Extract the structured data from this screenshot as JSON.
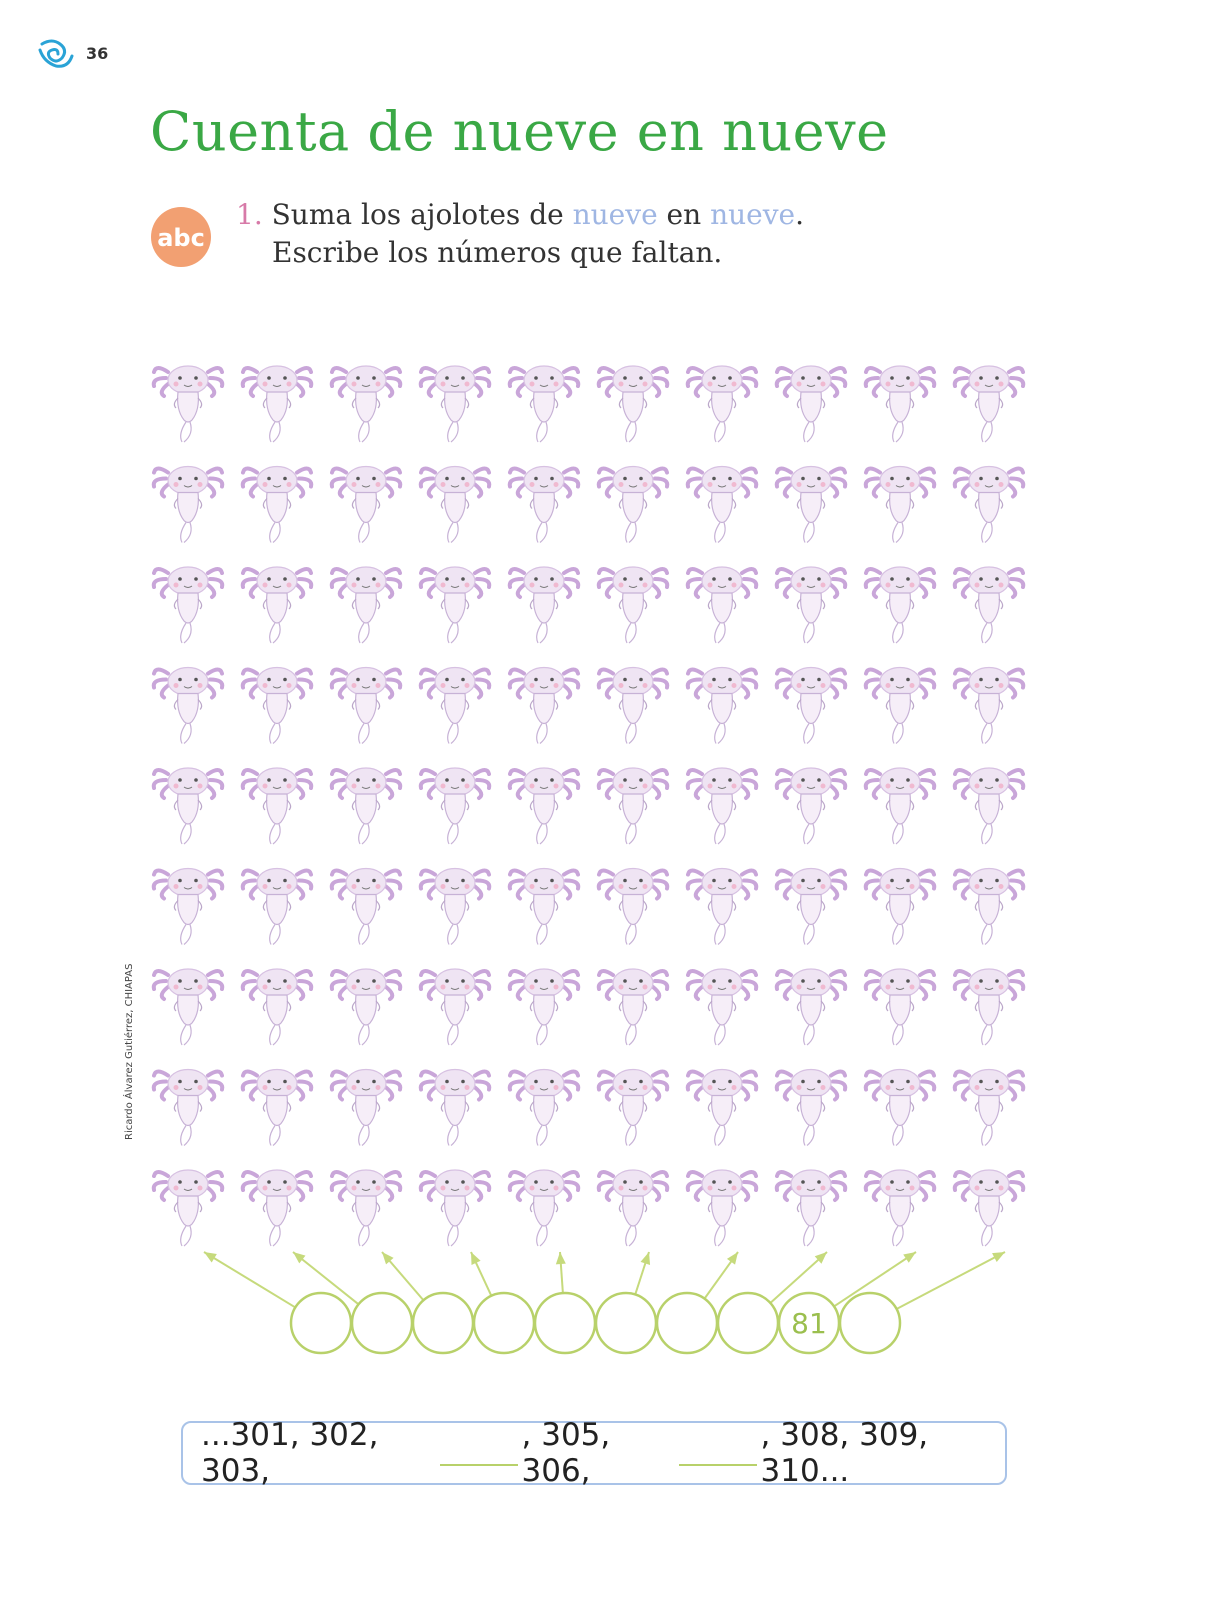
{
  "page": {
    "number": "36"
  },
  "title": "Cuenta de nueve en nueve",
  "instruction": {
    "number": "1.",
    "part1": "Suma los ajolotes de",
    "highlight1": "nueve",
    "part2": "en",
    "highlight2": "nueve",
    "part3": ".",
    "line2": "Escribe los números que faltan."
  },
  "badge": {
    "label": "abc",
    "color": "#f2a072"
  },
  "credit": "Ricardo Álvarez Gutiérrez, CHIAPAS",
  "grid": {
    "rows": 9,
    "columns": 10,
    "item": "axolotl"
  },
  "circles": [
    "",
    "",
    "",
    "",
    "",
    "",
    "",
    "",
    "81",
    ""
  ],
  "sequence": {
    "part1": "...301, 302, 303,",
    "part2": ", 305, 306,",
    "part3": ", 308, 309, 310..."
  },
  "colors": {
    "title": "#3aa845",
    "circle": "#b8d16a",
    "axolotl": "#c9a6d9",
    "box_border": "#a9c3e8"
  }
}
